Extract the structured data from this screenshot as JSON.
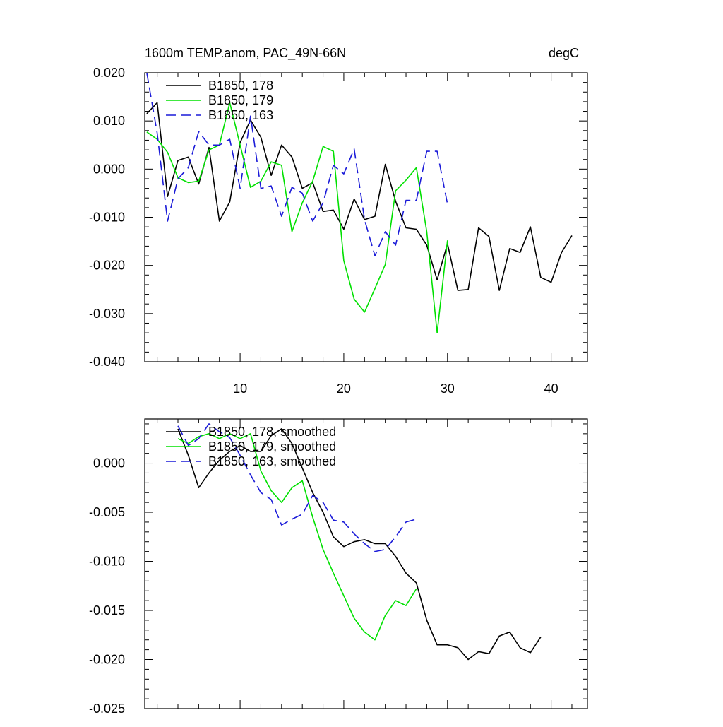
{
  "chart_data": [
    {
      "type": "line",
      "title": "1600m TEMP.anom, PAC_49N-66N",
      "units": "degC",
      "xlabel": "",
      "ylabel": "",
      "xlim": [
        0.8,
        43.5
      ],
      "ylim": [
        -0.04,
        0.02
      ],
      "xticks": [
        10,
        20,
        30,
        40
      ],
      "xtick_labels": [
        "10",
        "20",
        "30",
        "40"
      ],
      "yticks": [
        -0.04,
        -0.03,
        -0.02,
        -0.01,
        0.0,
        0.01,
        0.02
      ],
      "ytick_labels": [
        "-0.040",
        "-0.030",
        "-0.020",
        "-0.010",
        "0.000",
        "0.010",
        "0.020"
      ],
      "legend_position": "top-left",
      "series": [
        {
          "name": "B1850, 178",
          "color": "#000000",
          "dash": "solid",
          "x": [
            1,
            2,
            3,
            4,
            5,
            6,
            7,
            8,
            9,
            10,
            11,
            12,
            13,
            14,
            15,
            16,
            17,
            18,
            19,
            20,
            21,
            22,
            23,
            24,
            25,
            26,
            27,
            28,
            29,
            30,
            31,
            32,
            33,
            34,
            35,
            36,
            37,
            38,
            39,
            40,
            41,
            42
          ],
          "y": [
            0.0115,
            0.0138,
            -0.0057,
            0.0018,
            0.0025,
            -0.0031,
            0.0045,
            -0.0108,
            -0.0068,
            0.0055,
            0.0102,
            0.0066,
            -0.0013,
            0.005,
            0.0025,
            -0.004,
            -0.0028,
            -0.0088,
            -0.0085,
            -0.0125,
            -0.0062,
            -0.0105,
            -0.0098,
            0.001,
            -0.0067,
            -0.0122,
            -0.0125,
            -0.0158,
            -0.023,
            -0.0155,
            -0.0252,
            -0.025,
            -0.0122,
            -0.014,
            -0.0252,
            -0.0165,
            -0.0173,
            -0.012,
            -0.0225,
            -0.0235,
            -0.0173,
            -0.0138
          ]
        },
        {
          "name": "B1850, 179",
          "color": "#00e000",
          "dash": "solid",
          "x": [
            1,
            2,
            3,
            4,
            5,
            6,
            7,
            8,
            9,
            10,
            11,
            12,
            13,
            14,
            15,
            16,
            17,
            18,
            19,
            20,
            21,
            22,
            23,
            24,
            25,
            26,
            27,
            28,
            29,
            30
          ],
          "y": [
            0.0077,
            0.0062,
            0.0035,
            -0.0018,
            -0.0028,
            -0.0025,
            0.004,
            0.005,
            0.0138,
            0.005,
            -0.0038,
            -0.0025,
            0.0015,
            0.0008,
            -0.013,
            -0.007,
            -0.0025,
            0.0047,
            0.0037,
            -0.019,
            -0.027,
            -0.0297,
            -0.0248,
            -0.0198,
            -0.0045,
            -0.0023,
            0.0003,
            -0.013,
            -0.034,
            -0.0148
          ]
        },
        {
          "name": "B1850, 163",
          "color": "#1a1ad8",
          "dash": "dashed",
          "x": [
            1,
            2,
            3,
            4,
            5,
            6,
            7,
            8,
            9,
            10,
            11,
            12,
            13,
            14,
            15,
            16,
            17,
            18,
            19,
            20,
            21,
            22,
            23,
            24,
            25,
            26,
            27,
            28,
            29,
            30
          ],
          "y": [
            0.02,
            0.0075,
            -0.0108,
            -0.002,
            0.0003,
            0.0078,
            0.005,
            0.005,
            0.0062,
            -0.004,
            0.011,
            -0.004,
            -0.0035,
            -0.0098,
            -0.0038,
            -0.005,
            -0.0108,
            -0.007,
            0.0008,
            -0.001,
            0.0042,
            -0.0105,
            -0.018,
            -0.013,
            -0.0158,
            -0.0065,
            -0.0065,
            0.0037,
            0.0037,
            -0.0073
          ]
        }
      ]
    },
    {
      "type": "line",
      "title": "",
      "xlabel": "",
      "ylabel": "",
      "xlim": [
        0.8,
        43.5
      ],
      "ylim": [
        -0.025,
        0.0045
      ],
      "xticks": [
        10,
        20,
        30,
        40
      ],
      "xtick_labels": [],
      "yticks": [
        -0.025,
        -0.02,
        -0.015,
        -0.01,
        -0.005,
        0.0
      ],
      "ytick_labels": [
        "-0.025",
        "-0.020",
        "-0.015",
        "-0.010",
        "-0.005",
        "0.000"
      ],
      "legend_position": "top-left",
      "series": [
        {
          "name": "B1850, 178, smoothed",
          "color": "#000000",
          "dash": "solid",
          "x": [
            4,
            5,
            6,
            7,
            8,
            9,
            10,
            11,
            12,
            13,
            14,
            15,
            16,
            17,
            18,
            19,
            20,
            21,
            22,
            23,
            24,
            25,
            26,
            27,
            28,
            29,
            30,
            31,
            32,
            33,
            34,
            35,
            36,
            37,
            38,
            39
          ],
          "y": [
            0.0035,
            0.0008,
            -0.0025,
            -0.001,
            0.0003,
            0.0012,
            0.0018,
            0.0012,
            0.0012,
            0.0028,
            0.0035,
            0.002,
            -0.0005,
            -0.003,
            -0.005,
            -0.0075,
            -0.0085,
            -0.008,
            -0.0078,
            -0.0082,
            -0.0082,
            -0.0095,
            -0.0112,
            -0.0122,
            -0.016,
            -0.0185,
            -0.0185,
            -0.0188,
            -0.02,
            -0.0192,
            -0.0194,
            -0.0176,
            -0.0172,
            -0.0188,
            -0.0193,
            -0.0177
          ]
        },
        {
          "name": "B1850, 179, smoothed",
          "color": "#00e000",
          "dash": "solid",
          "x": [
            4,
            5,
            6,
            7,
            8,
            9,
            10,
            11,
            12,
            13,
            14,
            15,
            16,
            17,
            18,
            19,
            20,
            21,
            22,
            23,
            24,
            25,
            26,
            27
          ],
          "y": [
            0.0025,
            0.002,
            0.0027,
            0.003,
            0.0025,
            0.003,
            0.0025,
            0.003,
            -0.0008,
            -0.0028,
            -0.004,
            -0.0025,
            -0.0018,
            -0.0055,
            -0.0088,
            -0.0112,
            -0.0135,
            -0.0158,
            -0.0172,
            -0.018,
            -0.0155,
            -0.014,
            -0.0145,
            -0.0128
          ]
        },
        {
          "name": "B1850, 163, smoothed",
          "color": "#1a1ad8",
          "dash": "dashed",
          "x": [
            4,
            5,
            6,
            7,
            8,
            9,
            10,
            11,
            12,
            13,
            14,
            15,
            16,
            17,
            18,
            19,
            20,
            21,
            22,
            23,
            24,
            25,
            26,
            27
          ],
          "y": [
            0.0038,
            0.0018,
            0.0025,
            0.004,
            0.0032,
            0.0026,
            0.0008,
            -0.0012,
            -0.003,
            -0.0037,
            -0.0063,
            -0.0057,
            -0.0052,
            -0.0033,
            -0.004,
            -0.0058,
            -0.006,
            -0.0072,
            -0.0082,
            -0.009,
            -0.0088,
            -0.0075,
            -0.006,
            -0.0057
          ]
        }
      ]
    }
  ]
}
